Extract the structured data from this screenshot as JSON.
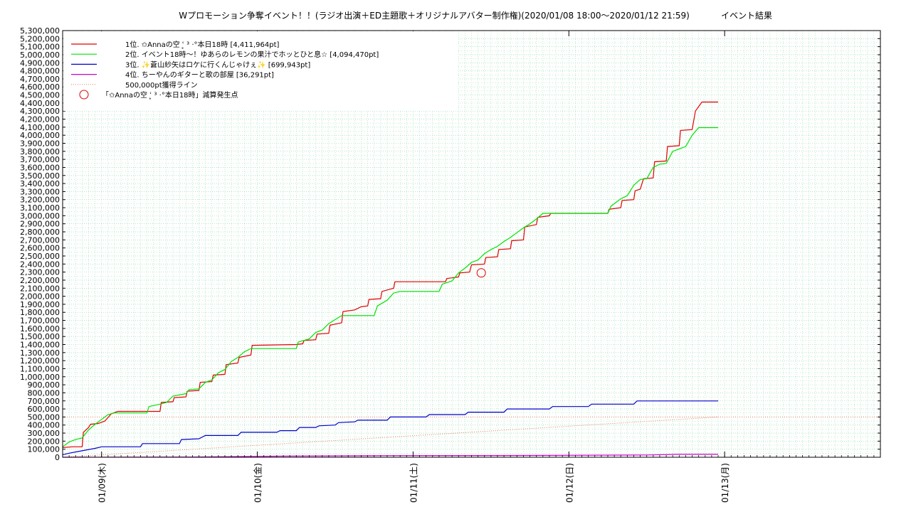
{
  "chart_data": {
    "type": "line",
    "title": "Wプロモーション争奪イベント！！(ラジオ出演＋ED主題歌＋オリジナルアバター制作権)(2020/01/08 18:00〜2020/01/12 21:59)",
    "title_suffix": "イベント結果",
    "xlabel": "",
    "ylabel": "",
    "x_start": "2020-01-08 18:00",
    "x_end": "2020-01-13 00:00",
    "xlim_hours": [
      0,
      126
    ],
    "ylim": [
      0,
      5300000
    ],
    "y_tick_step": 100000,
    "grid": true,
    "legend_position": "top-left",
    "x_ticks": [
      {
        "label": "01/09(木)",
        "hour": 6
      },
      {
        "label": "01/10(金)",
        "hour": 30
      },
      {
        "label": "01/11(土)",
        "hour": 54
      },
      {
        "label": "01/12(日)",
        "hour": 78
      },
      {
        "label": "01/13(月)",
        "hour": 102
      }
    ],
    "colors": {
      "series1": "#e00000",
      "series2": "#00e000",
      "series3": "#0000cc",
      "series4": "#cc00cc",
      "threshold": "#e08060",
      "marker": "#e00000",
      "grid": "#7fd7a0"
    },
    "series": [
      {
        "name": "1位. ✩Annaの空 ʿ̥ ³ ·°本日18時 [4,411,964pt]",
        "color_key": "series1",
        "points": [
          [
            0,
            120000
          ],
          [
            1.5,
            130000
          ],
          [
            3,
            130000
          ],
          [
            3.2,
            310000
          ],
          [
            4,
            370000
          ],
          [
            4.3,
            410000
          ],
          [
            5.5,
            420000
          ],
          [
            6.5,
            450000
          ],
          [
            7.5,
            540000
          ],
          [
            8.5,
            570000
          ],
          [
            15,
            570000
          ],
          [
            15.2,
            680000
          ],
          [
            17,
            690000
          ],
          [
            17.2,
            740000
          ],
          [
            19,
            750000
          ],
          [
            19.2,
            820000
          ],
          [
            21,
            830000
          ],
          [
            21.2,
            930000
          ],
          [
            23,
            940000
          ],
          [
            23.2,
            1020000
          ],
          [
            25,
            1030000
          ],
          [
            25.2,
            1150000
          ],
          [
            27,
            1170000
          ],
          [
            27.2,
            1240000
          ],
          [
            29,
            1270000
          ],
          [
            29.2,
            1390000
          ],
          [
            36,
            1400000
          ],
          [
            37,
            1410000
          ],
          [
            37.2,
            1450000
          ],
          [
            39,
            1460000
          ],
          [
            39.2,
            1530000
          ],
          [
            41,
            1540000
          ],
          [
            41.2,
            1640000
          ],
          [
            43,
            1670000
          ],
          [
            43.2,
            1810000
          ],
          [
            45,
            1830000
          ],
          [
            46,
            1870000
          ],
          [
            47,
            1880000
          ],
          [
            47.2,
            1960000
          ],
          [
            49,
            1970000
          ],
          [
            49.2,
            2060000
          ],
          [
            51,
            2100000
          ],
          [
            51.2,
            2180000
          ],
          [
            59,
            2180000
          ],
          [
            59.2,
            2220000
          ],
          [
            61,
            2240000
          ],
          [
            61.2,
            2290000
          ],
          [
            62.7,
            2300000
          ],
          [
            63,
            2390000
          ],
          [
            65,
            2400000
          ],
          [
            65.2,
            2480000
          ],
          [
            67,
            2490000
          ],
          [
            67.2,
            2580000
          ],
          [
            69,
            2590000
          ],
          [
            69.2,
            2690000
          ],
          [
            71,
            2700000
          ],
          [
            71.2,
            2860000
          ],
          [
            73,
            2890000
          ],
          [
            73.2,
            2980000
          ],
          [
            75,
            3000000
          ],
          [
            75.2,
            3030000
          ],
          [
            84,
            3030000
          ],
          [
            84.2,
            3080000
          ],
          [
            86,
            3100000
          ],
          [
            86.2,
            3190000
          ],
          [
            88,
            3200000
          ],
          [
            88.2,
            3310000
          ],
          [
            89,
            3330000
          ],
          [
            89.5,
            3460000
          ],
          [
            91,
            3470000
          ],
          [
            91.2,
            3670000
          ],
          [
            93,
            3680000
          ],
          [
            93.2,
            3860000
          ],
          [
            95,
            3870000
          ],
          [
            95.2,
            4060000
          ],
          [
            97,
            4070000
          ],
          [
            97.5,
            4300000
          ],
          [
            98.5,
            4411964
          ],
          [
            101,
            4411964
          ]
        ]
      },
      {
        "name": "2位. イベント18時〜！ゆあらのレモンの果汁でホッとひと息☆ [4,094,470pt]",
        "color_key": "series2",
        "points": [
          [
            0,
            130000
          ],
          [
            1,
            190000
          ],
          [
            2,
            220000
          ],
          [
            3,
            240000
          ],
          [
            4,
            340000
          ],
          [
            5,
            410000
          ],
          [
            6,
            470000
          ],
          [
            7,
            530000
          ],
          [
            8,
            550000
          ],
          [
            13,
            550000
          ],
          [
            13.3,
            630000
          ],
          [
            15,
            660000
          ],
          [
            16,
            680000
          ],
          [
            17,
            760000
          ],
          [
            19,
            790000
          ],
          [
            19.5,
            840000
          ],
          [
            21,
            850000
          ],
          [
            22,
            930000
          ],
          [
            23,
            960000
          ],
          [
            24,
            1050000
          ],
          [
            25,
            1090000
          ],
          [
            26,
            1190000
          ],
          [
            27,
            1240000
          ],
          [
            28,
            1310000
          ],
          [
            29,
            1350000
          ],
          [
            36,
            1350000
          ],
          [
            36.3,
            1430000
          ],
          [
            38,
            1470000
          ],
          [
            39,
            1550000
          ],
          [
            40,
            1580000
          ],
          [
            41,
            1660000
          ],
          [
            42,
            1710000
          ],
          [
            43,
            1760000
          ],
          [
            48,
            1760000
          ],
          [
            48.5,
            1880000
          ],
          [
            50,
            1950000
          ],
          [
            51,
            2040000
          ],
          [
            52,
            2060000
          ],
          [
            58,
            2060000
          ],
          [
            58.5,
            2150000
          ],
          [
            60,
            2190000
          ],
          [
            61,
            2290000
          ],
          [
            62,
            2350000
          ],
          [
            63,
            2420000
          ],
          [
            64,
            2450000
          ],
          [
            65,
            2530000
          ],
          [
            66,
            2580000
          ],
          [
            67,
            2620000
          ],
          [
            68,
            2680000
          ],
          [
            69,
            2730000
          ],
          [
            70,
            2790000
          ],
          [
            71,
            2850000
          ],
          [
            72,
            2900000
          ],
          [
            73,
            2960000
          ],
          [
            74,
            3030000
          ],
          [
            84,
            3030000
          ],
          [
            84.5,
            3120000
          ],
          [
            85,
            3150000
          ],
          [
            86,
            3210000
          ],
          [
            87,
            3250000
          ],
          [
            88,
            3380000
          ],
          [
            89,
            3450000
          ],
          [
            90,
            3460000
          ],
          [
            91,
            3600000
          ],
          [
            92,
            3640000
          ],
          [
            93,
            3650000
          ],
          [
            94,
            3800000
          ],
          [
            95,
            3830000
          ],
          [
            96,
            3860000
          ],
          [
            97,
            4000000
          ],
          [
            98,
            4094470
          ],
          [
            101,
            4094470
          ]
        ]
      },
      {
        "name": "3位. ✨蒼山紗矢はロケに行くんじゃけぇ✨ [699,943pt]",
        "color_key": "series3",
        "points": [
          [
            0,
            30000
          ],
          [
            1,
            50000
          ],
          [
            3,
            80000
          ],
          [
            5,
            110000
          ],
          [
            6,
            130000
          ],
          [
            12,
            130000
          ],
          [
            12.3,
            170000
          ],
          [
            18,
            170000
          ],
          [
            18.3,
            220000
          ],
          [
            21,
            230000
          ],
          [
            22,
            270000
          ],
          [
            27,
            270000
          ],
          [
            27.5,
            310000
          ],
          [
            33,
            310000
          ],
          [
            33.5,
            330000
          ],
          [
            36,
            330000
          ],
          [
            36.5,
            370000
          ],
          [
            39,
            370000
          ],
          [
            39.5,
            390000
          ],
          [
            42,
            400000
          ],
          [
            42.5,
            430000
          ],
          [
            45,
            440000
          ],
          [
            45.5,
            460000
          ],
          [
            50,
            460000
          ],
          [
            50.5,
            500000
          ],
          [
            56,
            500000
          ],
          [
            56.5,
            530000
          ],
          [
            62,
            530000
          ],
          [
            62.5,
            560000
          ],
          [
            68,
            560000
          ],
          [
            68.5,
            600000
          ],
          [
            75,
            600000
          ],
          [
            75.5,
            630000
          ],
          [
            81,
            630000
          ],
          [
            81.5,
            660000
          ],
          [
            88,
            660000
          ],
          [
            88.5,
            700000
          ],
          [
            101,
            699943
          ]
        ]
      },
      {
        "name": "4位. ちーやんのギターと歌の部屋 [36,291pt]",
        "color_key": "series4",
        "points": [
          [
            0,
            0
          ],
          [
            10,
            2000
          ],
          [
            20,
            3000
          ],
          [
            35,
            15000
          ],
          [
            50,
            20000
          ],
          [
            70,
            22000
          ],
          [
            90,
            28000
          ],
          [
            95,
            36291
          ],
          [
            101,
            36291
          ]
        ]
      }
    ],
    "threshold": {
      "name": "500,000pt獲得ライン",
      "points": [
        [
          0,
          0
        ],
        [
          101,
          500000
        ]
      ]
    },
    "marker": {
      "name": "「✩Annaの空 ʿ̥ ³ ·°本日18時」減算発生点",
      "x": 64.5,
      "y": 2290000
    }
  }
}
